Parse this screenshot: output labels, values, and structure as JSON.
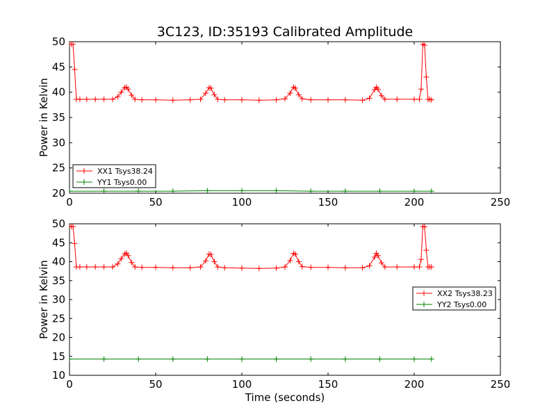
{
  "title": "3C123, ID:35193 Calibrated Amplitude",
  "xlabel": "Time (seconds)",
  "chart_data": [
    {
      "type": "line",
      "title": "3C123, ID:35193 Calibrated Amplitude",
      "xlabel": "",
      "ylabel": "Power in Kelvin",
      "xlim": [
        0,
        250
      ],
      "ylim": [
        20,
        50
      ],
      "x_ticks": [
        0,
        50,
        100,
        150,
        200,
        250
      ],
      "y_ticks": [
        20,
        25,
        30,
        35,
        40,
        45,
        50
      ],
      "grid": false,
      "legend_position": "lower-left",
      "series": [
        {
          "name": "XX1 Tsys38.24",
          "color": "#ff0000",
          "marker": "+",
          "x": [
            0,
            1,
            2,
            3,
            4,
            6,
            10,
            15,
            20,
            25,
            28,
            30,
            32,
            33,
            34,
            36,
            38,
            42,
            50,
            60,
            70,
            76,
            79,
            81,
            82,
            84,
            86,
            90,
            100,
            110,
            120,
            125,
            128,
            130,
            131,
            133,
            135,
            140,
            150,
            160,
            170,
            174,
            177,
            178,
            179,
            181,
            183,
            190,
            200,
            203,
            204,
            205,
            206,
            207,
            208,
            209,
            210
          ],
          "y": [
            49.5,
            49.5,
            49.5,
            44.5,
            38.6,
            38.6,
            38.6,
            38.6,
            38.6,
            38.6,
            39.1,
            40.0,
            40.9,
            41.0,
            40.6,
            39.4,
            38.6,
            38.5,
            38.5,
            38.4,
            38.5,
            38.6,
            39.8,
            40.9,
            40.8,
            39.5,
            38.6,
            38.5,
            38.5,
            38.4,
            38.5,
            38.7,
            39.8,
            41.0,
            40.8,
            39.5,
            38.7,
            38.5,
            38.5,
            38.5,
            38.4,
            38.8,
            40.5,
            41.0,
            40.6,
            39.3,
            38.6,
            38.6,
            38.6,
            38.6,
            40.6,
            49.5,
            49.3,
            43.0,
            38.6,
            38.6,
            38.5
          ]
        },
        {
          "name": "YY1 Tsys0.00",
          "color": "#008000",
          "marker": "+",
          "x": [
            0,
            20,
            40,
            60,
            80,
            100,
            120,
            140,
            160,
            180,
            200,
            210
          ],
          "y": [
            20.4,
            20.4,
            20.4,
            20.4,
            20.5,
            20.5,
            20.5,
            20.4,
            20.4,
            20.4,
            20.4,
            20.4
          ]
        }
      ]
    },
    {
      "type": "line",
      "title": "",
      "xlabel": "Time (seconds)",
      "ylabel": "Power in Kelvin",
      "xlim": [
        0,
        250
      ],
      "ylim": [
        10,
        50
      ],
      "x_ticks": [
        0,
        50,
        100,
        150,
        200,
        250
      ],
      "y_ticks": [
        10,
        15,
        20,
        25,
        30,
        35,
        40,
        45,
        50
      ],
      "grid": false,
      "legend_position": "center-right",
      "series": [
        {
          "name": "XX2 Tsys38.23",
          "color": "#ff0000",
          "marker": "+",
          "x": [
            0,
            1,
            2,
            3,
            4,
            6,
            10,
            15,
            20,
            25,
            28,
            30,
            32,
            33,
            34,
            36,
            38,
            42,
            50,
            60,
            70,
            76,
            79,
            81,
            82,
            84,
            86,
            90,
            100,
            110,
            120,
            125,
            128,
            130,
            131,
            133,
            135,
            140,
            150,
            160,
            170,
            174,
            177,
            178,
            179,
            181,
            183,
            190,
            200,
            203,
            204,
            205,
            206,
            207,
            208,
            209,
            210
          ],
          "y": [
            49.3,
            49.3,
            49.3,
            44.8,
            38.6,
            38.6,
            38.6,
            38.6,
            38.6,
            38.6,
            39.4,
            40.8,
            42.0,
            42.3,
            41.6,
            39.8,
            38.6,
            38.5,
            38.5,
            38.4,
            38.4,
            38.6,
            40.2,
            42.0,
            41.9,
            40.0,
            38.6,
            38.4,
            38.3,
            38.2,
            38.3,
            38.6,
            40.3,
            42.2,
            42.0,
            40.0,
            38.7,
            38.5,
            38.5,
            38.4,
            38.4,
            38.9,
            41.2,
            42.2,
            41.6,
            39.7,
            38.6,
            38.6,
            38.6,
            38.6,
            40.6,
            49.3,
            49.2,
            43.0,
            38.6,
            38.6,
            38.6
          ]
        },
        {
          "name": "YY2 Tsys0.00",
          "color": "#008000",
          "marker": "+",
          "x": [
            0,
            20,
            40,
            60,
            80,
            100,
            120,
            140,
            160,
            180,
            200,
            210
          ],
          "y": [
            14.3,
            14.3,
            14.3,
            14.3,
            14.3,
            14.3,
            14.3,
            14.3,
            14.3,
            14.3,
            14.3,
            14.3
          ]
        }
      ]
    }
  ]
}
